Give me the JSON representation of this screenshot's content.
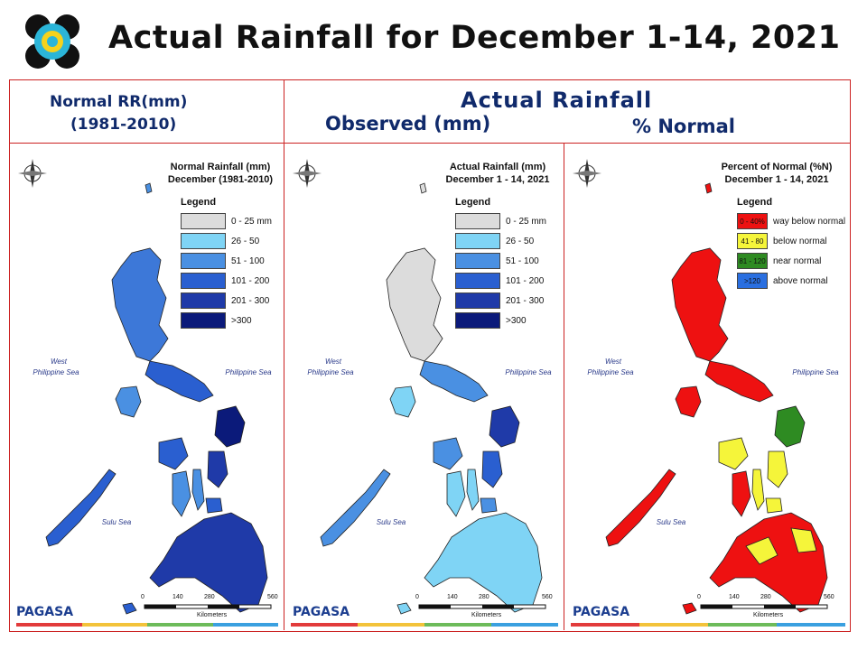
{
  "header": {
    "title": "Actual Rainfall for December 1-14, 2021"
  },
  "columns": {
    "normal": {
      "line1": "Normal RR(mm)",
      "line2": "(1981-2010)"
    },
    "actual": {
      "heading": "Actual Rainfall",
      "observed": "Observed (mm)",
      "percent": "% Normal"
    }
  },
  "panels": [
    {
      "title_line1": "Normal Rainfall (mm)",
      "title_line2": "December (1981-2010)",
      "legend_title": "Legend",
      "legend": [
        {
          "label": "0 - 25 mm",
          "color": "#dcdcdc"
        },
        {
          "label": "26 - 50",
          "color": "#7fd4f5"
        },
        {
          "label": "51 - 100",
          "color": "#4a90e2"
        },
        {
          "label": "101 - 200",
          "color": "#2a5fd0"
        },
        {
          "label": "201 - 300",
          "color": "#1f3aa8"
        },
        {
          "label": ">300",
          "color": "#0b1a7a"
        }
      ],
      "sea_west": "West\nPhilippine Sea",
      "sea_east": "Philippine Sea",
      "sea_sulu": "Sulu Sea",
      "scale": [
        "0",
        "140",
        "280",
        "560"
      ],
      "scale_unit": "Kilometers"
    },
    {
      "title_line1": "Actual Rainfall (mm)",
      "title_line2": "December 1 - 14, 2021",
      "legend_title": "Legend",
      "legend": [
        {
          "label": "0 - 25 mm",
          "color": "#dcdcdc"
        },
        {
          "label": "26 - 50",
          "color": "#7fd4f5"
        },
        {
          "label": "51 - 100",
          "color": "#4a90e2"
        },
        {
          "label": "101 - 200",
          "color": "#2a5fd0"
        },
        {
          "label": "201 - 300",
          "color": "#1f3aa8"
        },
        {
          "label": ">300",
          "color": "#0b1a7a"
        }
      ],
      "sea_west": "West\nPhilippine Sea",
      "sea_east": "Philippine Sea",
      "sea_sulu": "Sulu Sea",
      "scale": [
        "0",
        "140",
        "280",
        "560"
      ],
      "scale_unit": "Kilometers"
    },
    {
      "title_line1": "Percent of Normal (%N)",
      "title_line2": "December 1 - 14, 2021",
      "legend_title": "Legend",
      "legend": [
        {
          "swatch": "0 - 40%",
          "label": "way below normal",
          "color": "#ee1111"
        },
        {
          "swatch": "41 - 80",
          "label": "below normal",
          "color": "#f5f53a"
        },
        {
          "swatch": "81 - 120",
          "label": "near normal",
          "color": "#2e8b22"
        },
        {
          "swatch": ">120",
          "label": "above normal",
          "color": "#2a6fe0"
        }
      ],
      "sea_west": "West\nPhilippine Sea",
      "sea_east": "Philippine Sea",
      "sea_sulu": "Sulu Sea",
      "scale": [
        "0",
        "140",
        "280",
        "560"
      ],
      "scale_unit": "Kilometers"
    }
  ],
  "branding": {
    "agency": "PAGASA",
    "compass_label": "N"
  },
  "colors": {
    "frame": "#cc2222",
    "header_text": "#102a6b",
    "stripe": [
      "#e23b3b",
      "#f3c33a",
      "#6dbb5a",
      "#3aa0e0"
    ]
  }
}
